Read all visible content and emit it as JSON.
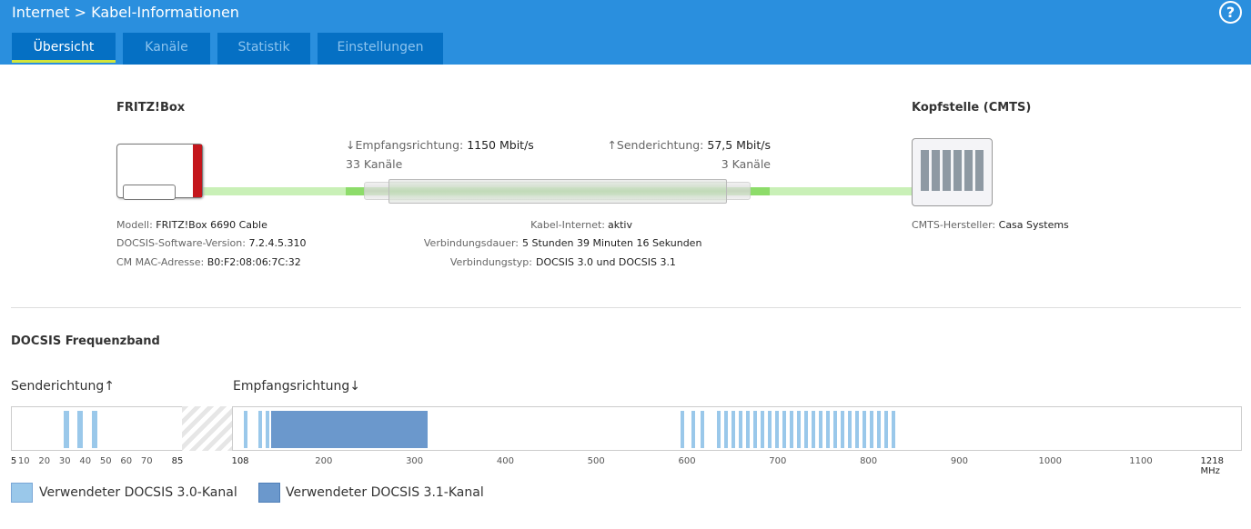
{
  "header": {
    "breadcrumb": "Internet > Kabel-Informationen",
    "help": "?"
  },
  "tabs": [
    {
      "label": "Übersicht"
    },
    {
      "label": "Kanäle"
    },
    {
      "label": "Statistik"
    },
    {
      "label": "Einstellungen"
    }
  ],
  "fritzbox": {
    "title": "FRITZ!Box",
    "model_label": "Modell:",
    "model": "FRITZ!Box 6690 Cable",
    "sw_label": "DOCSIS-Software-Version:",
    "sw": "7.2.4.5.310",
    "mac_label": "CM MAC-Adresse:",
    "mac": "B0:F2:08:06:7C:32"
  },
  "cmts": {
    "title": "Kopfstelle (CMTS)",
    "vendor_label": "CMTS-Hersteller:",
    "vendor": "Casa Systems"
  },
  "link": {
    "down_label": "↓Empfangsrichtung:",
    "down_rate": "1150 Mbit/s",
    "down_channels": "33 Kanäle",
    "up_label": "↑Senderichtung:",
    "up_rate": "57,5 Mbit/s",
    "up_channels": "3 Kanäle",
    "internet_label": "Kabel-Internet:",
    "internet": "aktiv",
    "duration_label": "Verbindungsdauer:",
    "duration": "5 Stunden 39 Minuten 16 Sekunden",
    "type_label": "Verbindungstyp:",
    "type": "DOCSIS 3.0 und DOCSIS 3.1"
  },
  "band": {
    "title": "DOCSIS Frequenzband",
    "up_title": "Senderichtung↑",
    "down_title": "Empfangsrichtung↓",
    "up_ticks": [
      "5",
      "10",
      "20",
      "30",
      "40",
      "50",
      "60",
      "70",
      "85"
    ],
    "down_ticks": [
      "108",
      "200",
      "300",
      "400",
      "500",
      "600",
      "700",
      "800",
      "900",
      "1000",
      "1100",
      "1218 MHz"
    ],
    "up_channels_mhz": [
      30.8,
      37.6,
      44.4
    ],
    "down_channels_mhz": [
      114,
      130,
      138,
      146,
      595,
      607,
      617,
      635,
      643,
      651,
      659,
      667,
      675,
      683,
      691,
      699,
      707,
      715,
      723,
      731,
      739,
      747,
      755,
      763,
      771,
      779,
      787,
      795,
      803,
      811,
      819,
      827
    ],
    "ofdm_mhz": [
      142,
      314
    ],
    "legend_30": "Verwendeter DOCSIS 3.0-Kanal",
    "legend_31": "Verwendeter DOCSIS 3.1-Kanal",
    "color_30": "#9ac8ea",
    "color_31": "#6b98cc"
  }
}
